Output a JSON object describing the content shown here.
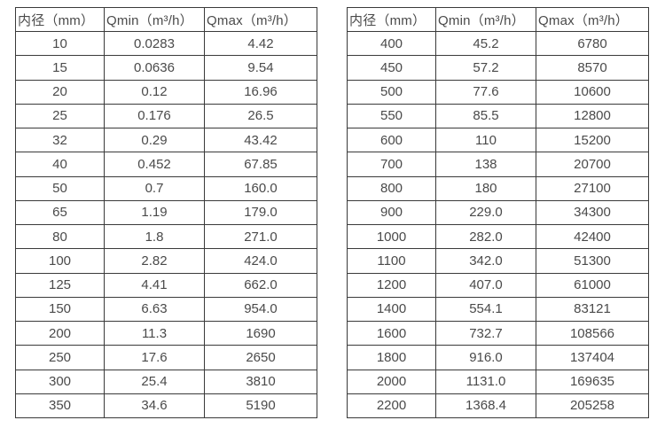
{
  "colors": {
    "border": "#3a3a3a",
    "text": "#4a4a4a",
    "background": "#ffffff"
  },
  "tables": [
    {
      "name": "flow-table-small-diameters",
      "headers": [
        "内径（mm）",
        "Qmin（m³/h）",
        "Qmax（m³/h）"
      ],
      "rows": [
        [
          "10",
          "0.0283",
          "4.42"
        ],
        [
          "15",
          "0.0636",
          "9.54"
        ],
        [
          "20",
          "0.12",
          "16.96"
        ],
        [
          "25",
          "0.176",
          "26.5"
        ],
        [
          "32",
          "0.29",
          "43.42"
        ],
        [
          "40",
          "0.452",
          "67.85"
        ],
        [
          "50",
          "0.7",
          "160.0"
        ],
        [
          "65",
          "1.19",
          "179.0"
        ],
        [
          "80",
          "1.8",
          "271.0"
        ],
        [
          "100",
          "2.82",
          "424.0"
        ],
        [
          "125",
          "4.41",
          "662.0"
        ],
        [
          "150",
          "6.63",
          "954.0"
        ],
        [
          "200",
          "11.3",
          "1690"
        ],
        [
          "250",
          "17.6",
          "2650"
        ],
        [
          "300",
          "25.4",
          "3810"
        ],
        [
          "350",
          "34.6",
          "5190"
        ]
      ]
    },
    {
      "name": "flow-table-large-diameters",
      "headers": [
        "内径（mm）",
        "Qmin（m³/h）",
        "Qmax（m³/h）"
      ],
      "rows": [
        [
          "400",
          "45.2",
          "6780"
        ],
        [
          "450",
          "57.2",
          "8570"
        ],
        [
          "500",
          "77.6",
          "10600"
        ],
        [
          "550",
          "85.5",
          "12800"
        ],
        [
          "600",
          "110",
          "15200"
        ],
        [
          "700",
          "138",
          "20700"
        ],
        [
          "800",
          "180",
          "27100"
        ],
        [
          "900",
          "229.0",
          "34300"
        ],
        [
          "1000",
          "282.0",
          "42400"
        ],
        [
          "1100",
          "342.0",
          "51300"
        ],
        [
          "1200",
          "407.0",
          "61000"
        ],
        [
          "1400",
          "554.1",
          "83121"
        ],
        [
          "1600",
          "732.7",
          "108566"
        ],
        [
          "1800",
          "916.0",
          "137404"
        ],
        [
          "2000",
          "1131.0",
          "169635"
        ],
        [
          "2200",
          "1368.4",
          "205258"
        ]
      ]
    }
  ]
}
